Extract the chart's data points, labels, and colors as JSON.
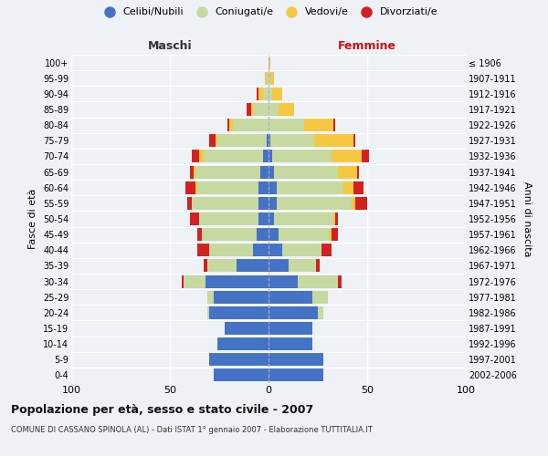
{
  "age_groups": [
    "0-4",
    "5-9",
    "10-14",
    "15-19",
    "20-24",
    "25-29",
    "30-34",
    "35-39",
    "40-44",
    "45-49",
    "50-54",
    "55-59",
    "60-64",
    "65-69",
    "70-74",
    "75-79",
    "80-84",
    "85-89",
    "90-94",
    "95-99",
    "100+"
  ],
  "birth_years": [
    "2002-2006",
    "1997-2001",
    "1992-1996",
    "1987-1991",
    "1982-1986",
    "1977-1981",
    "1972-1976",
    "1967-1971",
    "1962-1966",
    "1957-1961",
    "1952-1956",
    "1947-1951",
    "1942-1946",
    "1937-1941",
    "1932-1936",
    "1927-1931",
    "1922-1926",
    "1917-1921",
    "1912-1916",
    "1907-1911",
    "≤ 1906"
  ],
  "colors": {
    "celibi": "#4472C4",
    "coniugati": "#c5d9a0",
    "vedovi": "#f5c842",
    "divorziati": "#d42020"
  },
  "males": {
    "celibi": [
      28,
      30,
      26,
      22,
      30,
      28,
      32,
      16,
      8,
      6,
      5,
      5,
      5,
      4,
      3,
      1,
      0,
      0,
      0,
      0,
      0
    ],
    "coniugati": [
      0,
      0,
      0,
      0,
      1,
      3,
      11,
      15,
      22,
      28,
      30,
      34,
      31,
      33,
      30,
      25,
      18,
      8,
      3,
      1,
      0
    ],
    "vedovi": [
      0,
      0,
      0,
      0,
      0,
      0,
      0,
      0,
      0,
      0,
      0,
      0,
      1,
      1,
      2,
      1,
      2,
      1,
      2,
      1,
      0
    ],
    "divorziati": [
      0,
      0,
      0,
      0,
      0,
      0,
      1,
      2,
      6,
      2,
      5,
      2,
      5,
      2,
      4,
      3,
      1,
      2,
      1,
      0,
      0
    ]
  },
  "females": {
    "nubili": [
      28,
      28,
      22,
      22,
      25,
      22,
      15,
      10,
      7,
      5,
      3,
      4,
      4,
      3,
      2,
      1,
      0,
      0,
      0,
      0,
      0
    ],
    "coniugate": [
      0,
      0,
      0,
      0,
      3,
      8,
      20,
      14,
      20,
      26,
      30,
      38,
      34,
      32,
      30,
      22,
      18,
      5,
      2,
      1,
      0
    ],
    "vedove": [
      0,
      0,
      0,
      0,
      0,
      0,
      0,
      0,
      0,
      1,
      1,
      2,
      5,
      10,
      15,
      20,
      15,
      8,
      5,
      2,
      1
    ],
    "divorziate": [
      0,
      0,
      0,
      0,
      0,
      0,
      2,
      2,
      5,
      3,
      1,
      6,
      5,
      1,
      4,
      1,
      1,
      0,
      0,
      0,
      0
    ]
  },
  "title": "Popolazione per età, sesso e stato civile - 2007",
  "subtitle": "COMUNE DI CASSANO SPINOLA (AL) - Dati ISTAT 1° gennaio 2007 - Elaborazione TUTTITALIA.IT",
  "ylabel_left": "Fasce di età",
  "ylabel_right": "Anni di nascita",
  "legend_labels": [
    "Celibi/Nubili",
    "Coniugati/e",
    "Vedovi/e",
    "Divorziati/e"
  ],
  "xlim": 100,
  "bg_color": "#eef2f7",
  "grid_color": "#ffffff",
  "center_line_color": "#aab0cc"
}
